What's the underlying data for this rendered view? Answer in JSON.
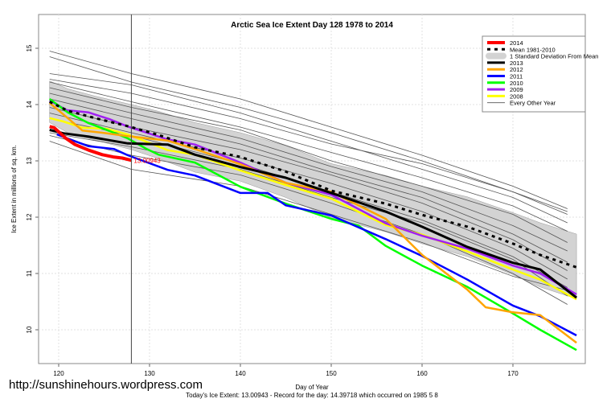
{
  "url_caption": "http://sunshinehours.wordpress.com",
  "chart_data": {
    "type": "line",
    "title": "Arctic Sea Ice Extent Day 128 1978 to 2014",
    "xlabel": "Day of Year",
    "ylabel": "Ice Extent in millions of sq. km.",
    "subtitle": "Today's Ice Extent: 13.00943  - Record for the day: 14.39718 which occurred on 1985 5 8",
    "xlim": [
      119,
      177
    ],
    "ylim": [
      9.4,
      15.5
    ],
    "x_ticks": [
      "120",
      "130",
      "140",
      "150",
      "160",
      "170"
    ],
    "y_ticks": [
      "10",
      "11",
      "12",
      "13",
      "14",
      "15"
    ],
    "grid": true,
    "legend_position": "top-right",
    "marker_day": 128,
    "marker_label": "13.00943",
    "legend": [
      "2014",
      "Mean 1981-2010",
      "1 Standard Deviation From Mean",
      "2013",
      "2012",
      "2011",
      "2010",
      "2009",
      "2008",
      "Every Other Year"
    ],
    "sd_band": {
      "name": "1 Standard Deviation From Mean",
      "color": "#d3d3d3",
      "x": [
        119,
        121,
        124,
        128,
        131,
        135,
        140,
        145,
        150,
        156,
        160,
        165,
        170,
        173,
        177
      ],
      "upper": [
        14.42,
        14.28,
        14.15,
        14.0,
        13.88,
        13.68,
        13.5,
        13.27,
        12.95,
        12.74,
        12.55,
        12.36,
        12.08,
        11.9,
        11.7
      ],
      "lower": [
        13.68,
        13.5,
        13.37,
        13.2,
        13.04,
        12.8,
        12.64,
        12.35,
        11.99,
        11.74,
        11.53,
        11.3,
        10.98,
        10.76,
        10.55
      ]
    },
    "series": [
      {
        "name": "2014",
        "color": "#ff0000",
        "width": 4,
        "x": [
          119,
          119.5,
          120.8,
          121.8,
          123.3,
          124.8,
          126,
          127,
          128
        ],
        "values": [
          13.61,
          13.59,
          13.4,
          13.29,
          13.19,
          13.11,
          13.07,
          13.05,
          13.01
        ]
      },
      {
        "name": "Mean 1981-2010",
        "color": "#000000",
        "width": 3,
        "dash": true,
        "x": [
          119,
          121,
          124,
          128,
          131,
          135,
          140,
          145,
          150,
          156,
          160,
          165,
          170,
          173,
          177
        ],
        "values": [
          14.05,
          13.89,
          13.76,
          13.6,
          13.46,
          13.24,
          13.07,
          12.81,
          12.47,
          12.24,
          12.04,
          11.83,
          11.53,
          11.33,
          11.11
        ]
      },
      {
        "name": "2013",
        "color": "#000000",
        "width": 3,
        "x": [
          119,
          120.5,
          123.3,
          127.6,
          132,
          135,
          140,
          145,
          150,
          156,
          160,
          165,
          170,
          173,
          177
        ],
        "values": [
          13.55,
          13.49,
          13.43,
          13.31,
          13.29,
          13.11,
          12.89,
          12.7,
          12.43,
          12.1,
          11.83,
          11.47,
          11.19,
          11.07,
          10.57
        ]
      },
      {
        "name": "2012",
        "color": "#ffa500",
        "width": 2.5,
        "x": [
          119,
          121,
          122.6,
          124.8,
          127.6,
          132,
          135,
          140,
          145,
          150,
          156,
          160,
          165,
          167,
          170,
          173,
          177
        ],
        "values": [
          14.03,
          13.76,
          13.54,
          13.5,
          13.44,
          13.36,
          13.21,
          12.94,
          12.61,
          12.45,
          11.97,
          11.33,
          10.71,
          10.4,
          10.31,
          10.26,
          9.77
        ]
      },
      {
        "name": "2011",
        "color": "#0000ff",
        "width": 2.5,
        "x": [
          119.8,
          121.1,
          123.3,
          126.1,
          127.6,
          132,
          135,
          140,
          143,
          145,
          150,
          156,
          160,
          165,
          170,
          173,
          177
        ],
        "values": [
          13.47,
          13.39,
          13.26,
          13.21,
          13.1,
          12.84,
          12.74,
          12.43,
          12.43,
          12.21,
          12.03,
          11.61,
          11.31,
          10.89,
          10.43,
          10.24,
          9.9
        ]
      },
      {
        "name": "2010",
        "color": "#00ff00",
        "width": 2.5,
        "x": [
          119,
          121,
          123.3,
          125.6,
          127.6,
          129.7,
          131,
          135,
          140,
          145,
          150,
          153,
          156,
          160,
          165,
          170,
          173,
          177
        ],
        "values": [
          14.1,
          13.86,
          13.67,
          13.53,
          13.4,
          13.21,
          13.11,
          12.97,
          12.54,
          12.24,
          11.97,
          11.85,
          11.49,
          11.14,
          10.76,
          10.29,
          10.0,
          9.64
        ]
      },
      {
        "name": "2009",
        "color": "#a020f0",
        "width": 2.5,
        "x": [
          119,
          120.9,
          123.3,
          125.6,
          127.6,
          132,
          135,
          140,
          145,
          150,
          156,
          160,
          165,
          170,
          173,
          177
        ],
        "values": [
          14.07,
          13.9,
          13.86,
          13.74,
          13.61,
          13.38,
          13.29,
          12.97,
          12.61,
          12.4,
          11.89,
          11.67,
          11.44,
          11.14,
          11.0,
          10.63
        ]
      },
      {
        "name": "2008",
        "color": "#ffff00",
        "width": 2.5,
        "x": [
          119,
          120.5,
          122.6,
          125.3,
          127.6,
          132,
          135,
          140,
          145,
          150,
          156,
          160,
          165,
          170,
          173,
          177
        ],
        "values": [
          13.76,
          13.7,
          13.59,
          13.57,
          13.47,
          13.19,
          13.11,
          12.83,
          12.57,
          12.33,
          11.86,
          11.69,
          11.39,
          11.07,
          10.89,
          10.54
        ]
      }
    ],
    "other_years": {
      "name": "Every Other Year",
      "color": "#555555",
      "x": [
        119,
        128,
        140,
        150,
        160,
        170,
        176
      ],
      "lines": [
        [
          14.95,
          14.55,
          14.1,
          13.6,
          13.1,
          12.55,
          12.15
        ],
        [
          14.85,
          14.4,
          13.95,
          13.5,
          13.0,
          12.45,
          12.1
        ],
        [
          14.55,
          14.35,
          13.85,
          13.35,
          12.85,
          12.35,
          11.9
        ],
        [
          14.45,
          14.2,
          13.75,
          13.3,
          12.95,
          12.45,
          12.05
        ],
        [
          14.4,
          14.05,
          13.6,
          13.15,
          12.7,
          12.2,
          11.75
        ],
        [
          14.3,
          13.95,
          13.55,
          13.0,
          12.55,
          12.05,
          11.55
        ],
        [
          14.2,
          13.85,
          13.4,
          12.9,
          12.45,
          11.85,
          11.4
        ],
        [
          14.1,
          13.75,
          13.3,
          12.8,
          12.35,
          11.7,
          11.2
        ],
        [
          13.95,
          13.6,
          13.2,
          12.75,
          12.25,
          11.6,
          11.05
        ],
        [
          13.85,
          13.5,
          13.05,
          12.6,
          12.1,
          11.45,
          10.9
        ],
        [
          13.75,
          13.45,
          12.95,
          12.45,
          11.95,
          11.3,
          10.75
        ],
        [
          13.5,
          13.25,
          12.85,
          12.35,
          11.9,
          11.25,
          10.6
        ],
        [
          13.45,
          13.1,
          12.75,
          12.25,
          11.7,
          11.0,
          10.45
        ],
        [
          13.35,
          12.85,
          12.55,
          12.05,
          11.55,
          10.95,
          10.7
        ]
      ]
    }
  }
}
